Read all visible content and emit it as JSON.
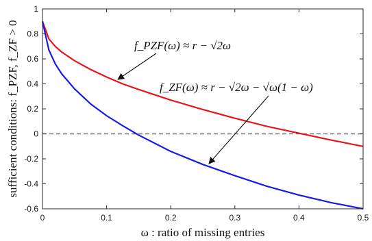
{
  "chart_data": {
    "type": "line",
    "xlabel": "ω : ratio of missing entries",
    "ylabel": "sufficient conditions: f_PZF, f_ZF > 0",
    "xlim": [
      0,
      0.5
    ],
    "ylim": [
      -0.6,
      1
    ],
    "xticks": [
      "0",
      "0.1",
      "0.2",
      "0.3",
      "0.4",
      "0.5"
    ],
    "yticks": [
      "-0.6",
      "-0.4",
      "-0.2",
      "0",
      "0.2",
      "0.4",
      "0.6",
      "0.8",
      "1"
    ],
    "grid": false,
    "reference_line": {
      "y": 0,
      "style": "dashed",
      "color": "#6e6e6e"
    },
    "series": [
      {
        "color": "#e8161a",
        "x": [
          0,
          0.01,
          0.02,
          0.03,
          0.05,
          0.075,
          0.1,
          0.125,
          0.15,
          0.2,
          0.25,
          0.3,
          0.35,
          0.4,
          0.45,
          0.5
        ],
        "y": [
          0.9,
          0.76,
          0.7,
          0.655,
          0.585,
          0.515,
          0.455,
          0.4,
          0.355,
          0.27,
          0.195,
          0.125,
          0.06,
          0.005,
          -0.05,
          -0.1
        ]
      },
      {
        "color": "#1a1ae6",
        "x": [
          0,
          0.01,
          0.02,
          0.03,
          0.05,
          0.075,
          0.1,
          0.125,
          0.15,
          0.2,
          0.25,
          0.3,
          0.35,
          0.4,
          0.45,
          0.5
        ],
        "y": [
          0.9,
          0.67,
          0.56,
          0.48,
          0.36,
          0.24,
          0.145,
          0.065,
          -0.01,
          -0.14,
          -0.245,
          -0.335,
          -0.42,
          -0.49,
          -0.55,
          -0.6
        ]
      }
    ],
    "annotations": [
      {
        "text": "f_PZF(ω) ≈ r − √2ω",
        "arrow_to": [
          0.12,
          0.41
        ]
      },
      {
        "text": "f_ZF(ω) ≈ r − √2ω − √ω(1 − ω)",
        "arrow_to": [
          0.27,
          -0.24
        ]
      }
    ]
  }
}
